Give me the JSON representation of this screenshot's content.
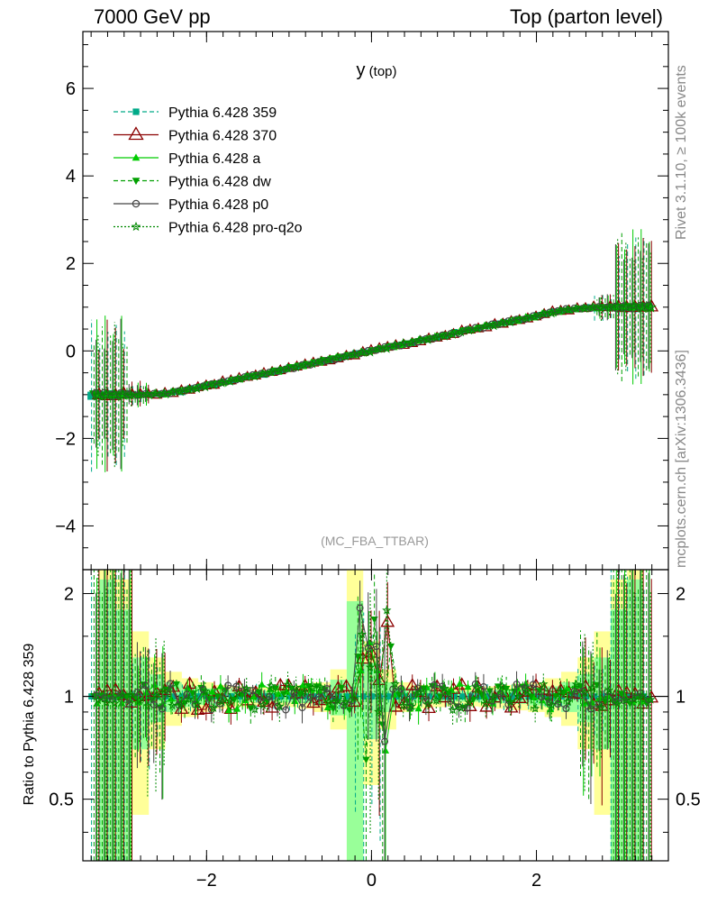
{
  "header": {
    "left": "7000 GeV pp",
    "right": "Top (parton level)"
  },
  "side_labels": {
    "rivet": "Rivet 3.1.10, ≥ 100k events",
    "url": "mcplots.cern.ch [arXiv:1306.3436]"
  },
  "colors": {
    "p359": "#00aa88",
    "p370": "#8b0000",
    "pa": "#00cc00",
    "pdw": "#00a000",
    "pp0": "#444444",
    "pq2o": "#008800",
    "band_green": "#99ff99",
    "band_yellow": "#ffff99"
  },
  "chart_data": [
    {
      "type": "line",
      "title": "y (top)",
      "title_main": "y",
      "title_sub": "(top)",
      "annotation": "(MC_FBA_TTBAR)",
      "xlim": [
        -3.5,
        3.6
      ],
      "ylim": [
        -5,
        7.3
      ],
      "yticks": [
        -4,
        -2,
        0,
        2,
        4,
        6
      ],
      "ytick_labels": [
        "−4",
        "−2",
        "0",
        "2",
        "4",
        "6"
      ],
      "grid": false,
      "legend_position": "top-left",
      "series": [
        {
          "name": "Pythia 6.428 359",
          "style": "dashed",
          "marker": "square-filled",
          "color": "#00aa88"
        },
        {
          "name": "Pythia 6.428 370",
          "style": "solid",
          "marker": "triangle-open",
          "color": "#8b0000"
        },
        {
          "name": "Pythia 6.428 a",
          "style": "solid",
          "marker": "triangle-filled",
          "color": "#00cc00"
        },
        {
          "name": "Pythia 6.428 dw",
          "style": "dashed",
          "marker": "triangle-down-filled",
          "color": "#00a000"
        },
        {
          "name": "Pythia 6.428 p0",
          "style": "solid",
          "marker": "circle-open",
          "color": "#444444"
        },
        {
          "name": "Pythia 6.428 pro-q2o",
          "style": "dotted",
          "marker": "star-open",
          "color": "#008800"
        }
      ],
      "mean_curve": {
        "x": [
          -3.3,
          -3.1,
          -2.9,
          -2.7,
          -2.5,
          -2.3,
          -2.1,
          -1.9,
          -1.7,
          -1.5,
          -1.3,
          -1.1,
          -0.9,
          -0.7,
          -0.5,
          -0.3,
          -0.1,
          0.1,
          0.3,
          0.5,
          0.7,
          0.9,
          1.1,
          1.3,
          1.5,
          1.7,
          1.9,
          2.1,
          2.3,
          2.5,
          2.7,
          2.9,
          3.1,
          3.3
        ],
        "y": [
          -1.0,
          -1.0,
          -1.0,
          -1.0,
          -0.98,
          -0.92,
          -0.84,
          -0.76,
          -0.68,
          -0.6,
          -0.52,
          -0.44,
          -0.36,
          -0.28,
          -0.2,
          -0.12,
          -0.04,
          0.04,
          0.12,
          0.2,
          0.28,
          0.36,
          0.44,
          0.52,
          0.6,
          0.68,
          0.76,
          0.84,
          0.92,
          0.98,
          1.0,
          1.0,
          1.0,
          1.0
        ]
      }
    },
    {
      "type": "line",
      "ylabel": "Ratio to Pythia 6.428 359",
      "xlim": [
        -3.5,
        3.6
      ],
      "ylim": [
        0.33,
        2.35
      ],
      "log_y": true,
      "xticks": [
        -2,
        0,
        2
      ],
      "xtick_labels": [
        "−2",
        "0",
        "2"
      ],
      "yticks": [
        0.5,
        1,
        2
      ],
      "ytick_labels": [
        "0.5",
        "1",
        "2"
      ],
      "reference": 1,
      "band_edges": [
        -3.3,
        -3.1,
        -2.9,
        -2.7,
        -2.5,
        -2.3,
        -2.1,
        -1.9,
        -1.7,
        -1.5,
        -1.3,
        -1.1,
        -0.9,
        -0.7,
        -0.5,
        -0.3,
        -0.1,
        0.1,
        0.3,
        0.5,
        0.7,
        0.9,
        1.1,
        1.3,
        1.5,
        1.7,
        1.9,
        2.1,
        2.3,
        2.5,
        2.7,
        2.9,
        3.1,
        3.3
      ],
      "band_yellow_half": [
        2.0,
        1.2,
        0.55,
        0.3,
        0.18,
        0.13,
        0.1,
        0.08,
        0.07,
        0.065,
        0.065,
        0.07,
        0.08,
        0.1,
        0.2,
        1.5,
        0.45,
        0.2,
        0.1,
        0.08,
        0.07,
        0.065,
        0.065,
        0.07,
        0.08,
        0.09,
        0.1,
        0.13,
        0.18,
        0.3,
        0.55,
        1.2,
        2.0
      ],
      "band_green_half": [
        1.2,
        0.8,
        0.3,
        0.16,
        0.1,
        0.07,
        0.055,
        0.045,
        0.04,
        0.035,
        0.035,
        0.04,
        0.045,
        0.06,
        0.12,
        0.9,
        0.25,
        0.1,
        0.06,
        0.045,
        0.04,
        0.035,
        0.035,
        0.04,
        0.045,
        0.05,
        0.06,
        0.07,
        0.1,
        0.16,
        0.3,
        0.8,
        1.2
      ]
    }
  ]
}
